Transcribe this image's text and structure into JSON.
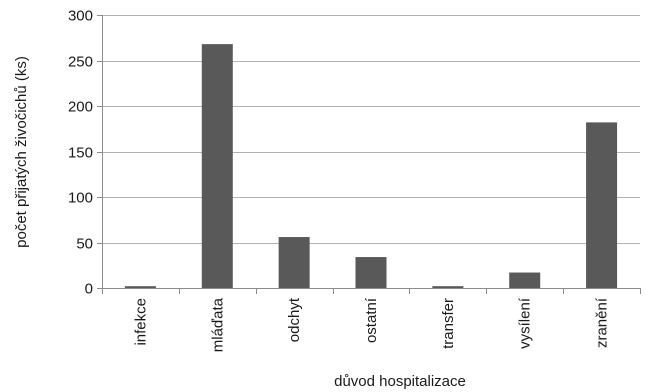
{
  "chart_data": {
    "type": "bar",
    "categories": [
      "infekce",
      "mláďata",
      "odchyt",
      "ostatní",
      "transfer",
      "vysílení",
      "zranění"
    ],
    "values": [
      2,
      268,
      56,
      34,
      2,
      17,
      182
    ],
    "xlabel": "důvod hospitalizace",
    "ylabel": "počet přijatých živočichů (ks)",
    "ylim": [
      0,
      300
    ],
    "yticks": [
      0,
      50,
      100,
      150,
      200,
      250,
      300
    ],
    "grid": true,
    "bar_color": "#595959"
  }
}
